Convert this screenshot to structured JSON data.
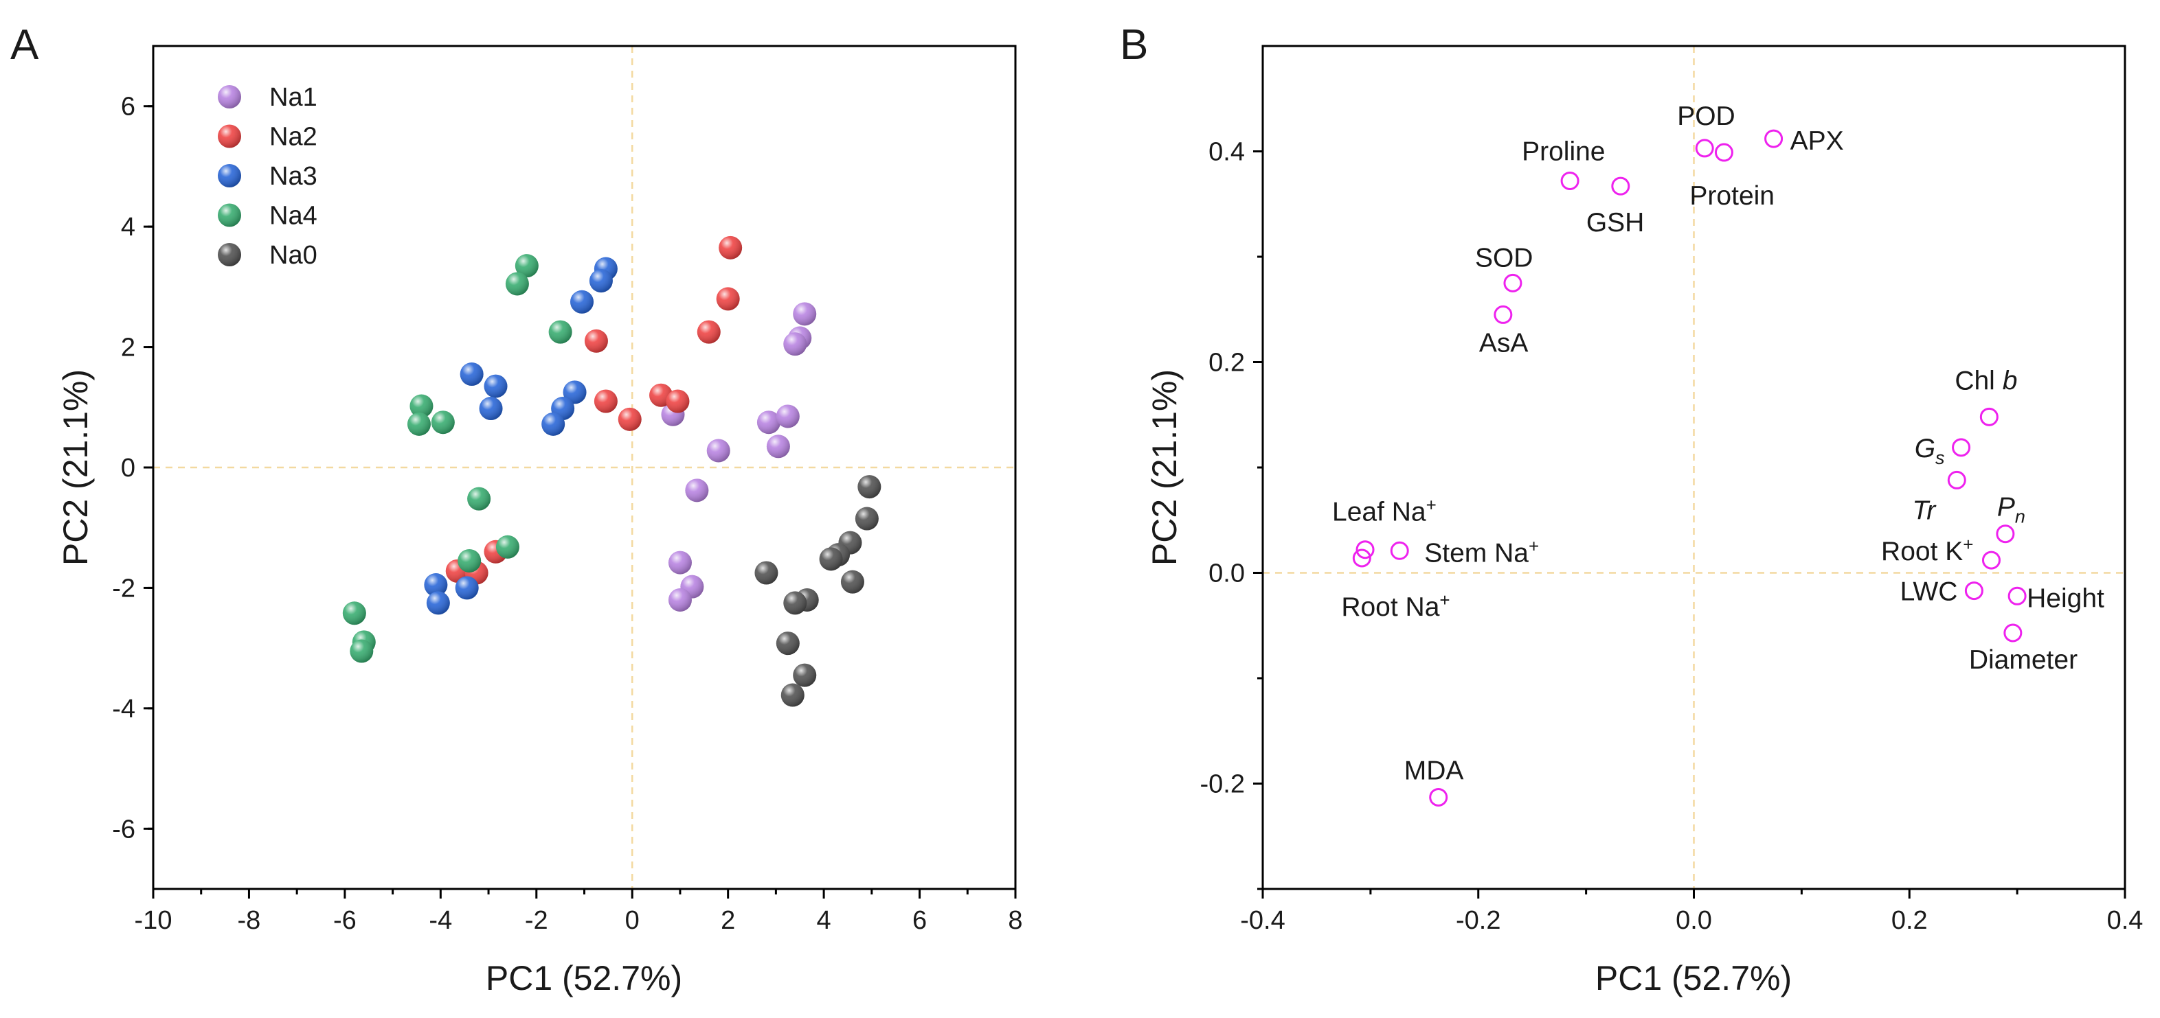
{
  "chart_data": [
    {
      "panel": "A",
      "type": "scatter",
      "xlabel": "PC1 (52.7%)",
      "ylabel": "PC2 (21.1%)",
      "xlim": [
        -10,
        8
      ],
      "ylim": [
        -7,
        7
      ],
      "xticks": [
        -10,
        -8,
        -6,
        -4,
        -2,
        0,
        2,
        4,
        6,
        8
      ],
      "yticks": [
        -6,
        -4,
        -2,
        0,
        2,
        4,
        6
      ],
      "legend_position": "top-left",
      "series": [
        {
          "name": "Na1",
          "color": "#b57ee0",
          "points": [
            [
              3.6,
              2.55
            ],
            [
              3.5,
              2.15
            ],
            [
              3.4,
              2.05
            ],
            [
              0.85,
              0.88
            ],
            [
              2.85,
              0.75
            ],
            [
              3.25,
              0.85
            ],
            [
              3.05,
              0.35
            ],
            [
              1.8,
              0.28
            ],
            [
              1.35,
              -0.38
            ],
            [
              1.0,
              -1.58
            ],
            [
              1.25,
              -1.98
            ],
            [
              1.0,
              -2.2
            ]
          ]
        },
        {
          "name": "Na2",
          "color": "#ee3b3b",
          "points": [
            [
              2.05,
              3.65
            ],
            [
              2.0,
              2.8
            ],
            [
              1.6,
              2.25
            ],
            [
              -0.75,
              2.1
            ],
            [
              0.6,
              1.2
            ],
            [
              0.95,
              1.1
            ],
            [
              -0.55,
              1.1
            ],
            [
              -0.05,
              0.8
            ],
            [
              -2.85,
              -1.4
            ],
            [
              -3.65,
              -1.72
            ],
            [
              -3.25,
              -1.75
            ]
          ]
        },
        {
          "name": "Na3",
          "color": "#1f5fd6",
          "points": [
            [
              -0.55,
              3.3
            ],
            [
              -0.65,
              3.1
            ],
            [
              -1.05,
              2.75
            ],
            [
              -3.35,
              1.55
            ],
            [
              -2.85,
              1.35
            ],
            [
              -1.2,
              1.25
            ],
            [
              -1.45,
              0.98
            ],
            [
              -2.95,
              0.98
            ],
            [
              -1.65,
              0.72
            ],
            [
              -4.1,
              -1.95
            ],
            [
              -4.05,
              -2.25
            ],
            [
              -3.45,
              -2.0
            ]
          ]
        },
        {
          "name": "Na4",
          "color": "#2fa96a",
          "points": [
            [
              -2.2,
              3.35
            ],
            [
              -2.4,
              3.05
            ],
            [
              -1.5,
              2.25
            ],
            [
              -4.4,
              1.02
            ],
            [
              -3.95,
              0.75
            ],
            [
              -4.45,
              0.72
            ],
            [
              -3.2,
              -0.52
            ],
            [
              -2.6,
              -1.32
            ],
            [
              -3.4,
              -1.55
            ],
            [
              -5.8,
              -2.42
            ],
            [
              -5.6,
              -2.9
            ],
            [
              -5.65,
              -3.05
            ]
          ]
        },
        {
          "name": "Na0",
          "color": "#4a4a4a",
          "points": [
            [
              4.95,
              -0.32
            ],
            [
              4.9,
              -0.85
            ],
            [
              4.55,
              -1.25
            ],
            [
              4.3,
              -1.45
            ],
            [
              4.15,
              -1.52
            ],
            [
              4.6,
              -1.9
            ],
            [
              2.8,
              -1.75
            ],
            [
              3.65,
              -2.2
            ],
            [
              3.4,
              -2.25
            ],
            [
              3.25,
              -2.92
            ],
            [
              3.6,
              -3.45
            ],
            [
              3.35,
              -3.78
            ]
          ]
        }
      ]
    },
    {
      "panel": "B",
      "type": "scatter",
      "xlabel": "PC1 (52.7%)",
      "ylabel": "PC2 (21.1%)",
      "xlim": [
        -0.4,
        0.4
      ],
      "ylim": [
        -0.3,
        0.5
      ],
      "xticks": [
        "-0.4",
        "-0.2",
        "0.0",
        "0.2",
        "0.4"
      ],
      "yticks": [
        "-0.2",
        "0.0",
        "0.2",
        "0.4"
      ],
      "marker_color": "#ee22ee",
      "variables": [
        {
          "name": "POD",
          "x": 0.01,
          "y": 0.403
        },
        {
          "name": "Protein",
          "x": 0.028,
          "y": 0.399
        },
        {
          "name": "APX",
          "x": 0.074,
          "y": 0.412
        },
        {
          "name": "Proline",
          "x": -0.115,
          "y": 0.372
        },
        {
          "name": "GSH",
          "x": -0.068,
          "y": 0.367
        },
        {
          "name": "SOD",
          "x": -0.168,
          "y": 0.275
        },
        {
          "name": "AsA",
          "x": -0.177,
          "y": 0.245
        },
        {
          "name": "Chl b",
          "x": 0.274,
          "y": 0.148
        },
        {
          "name": "Gs",
          "x": 0.248,
          "y": 0.119
        },
        {
          "name": "Tr",
          "x": 0.244,
          "y": 0.088
        },
        {
          "name": "Pn",
          "x": 0.289,
          "y": 0.037
        },
        {
          "name": "Root K+",
          "x": 0.276,
          "y": 0.012
        },
        {
          "name": "LWC",
          "x": 0.26,
          "y": -0.017
        },
        {
          "name": "Height",
          "x": 0.3,
          "y": -0.022
        },
        {
          "name": "Diameter",
          "x": 0.296,
          "y": -0.057
        },
        {
          "name": "Leaf Na+",
          "x": -0.305,
          "y": 0.022
        },
        {
          "name": "Stem Na+",
          "x": -0.273,
          "y": 0.021
        },
        {
          "name": "Root Na+",
          "x": -0.308,
          "y": 0.014
        },
        {
          "name": "MDA",
          "x": -0.237,
          "y": -0.213
        }
      ]
    }
  ]
}
